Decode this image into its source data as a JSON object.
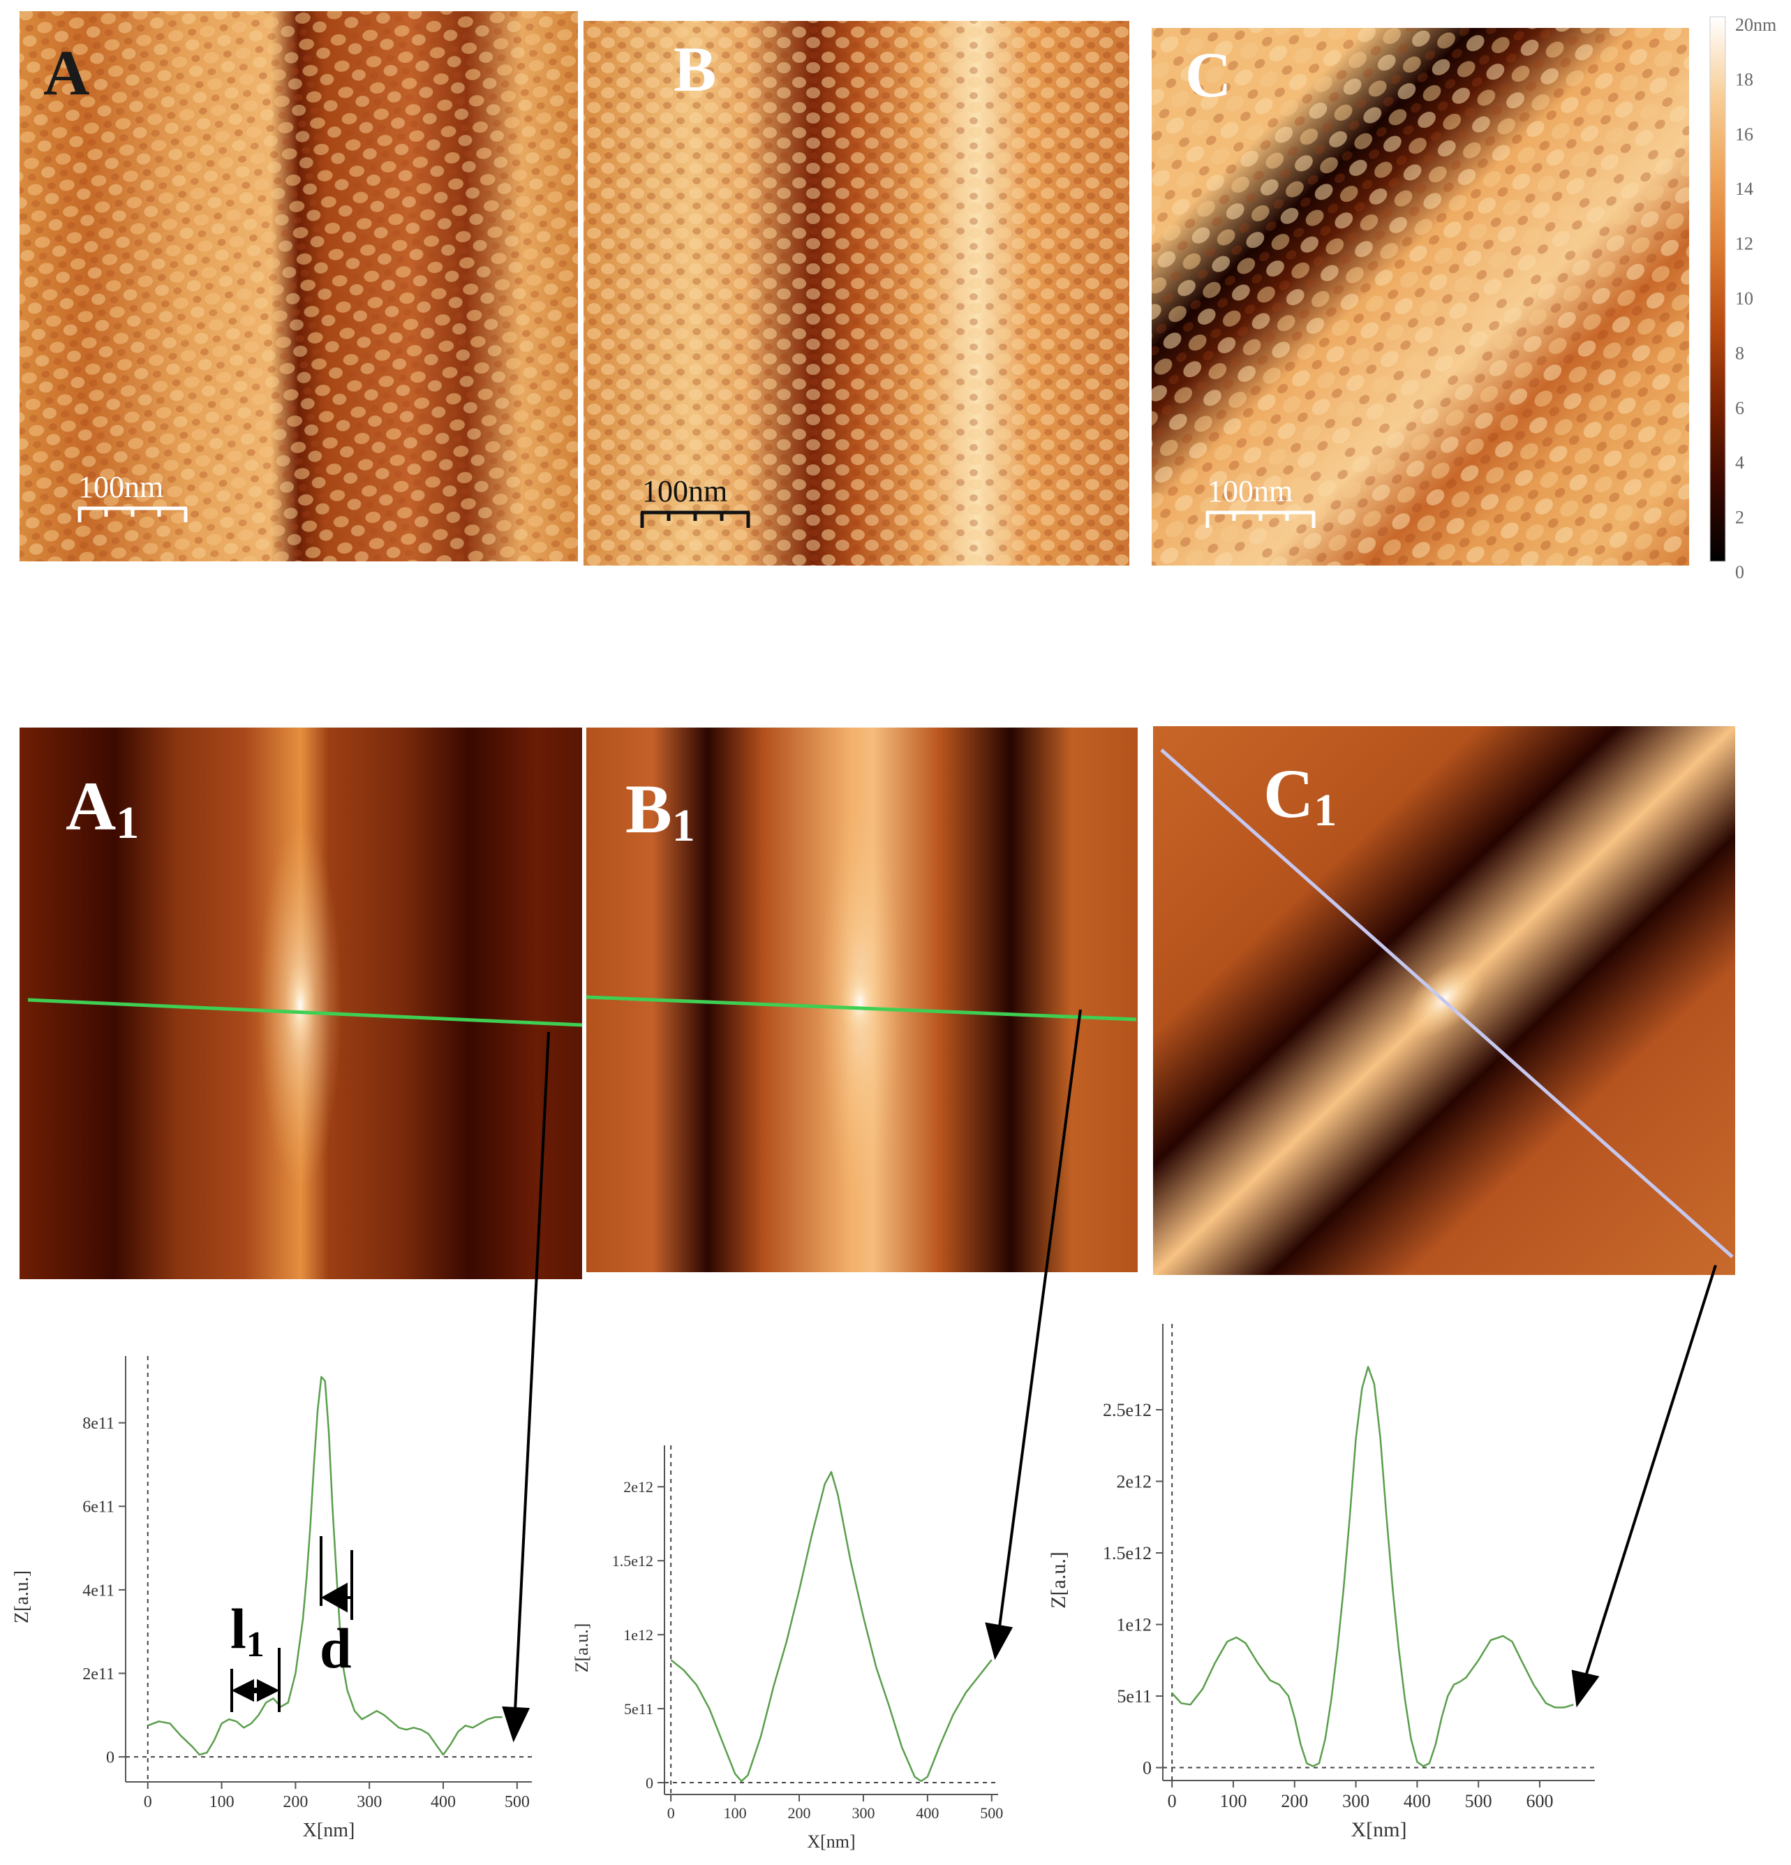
{
  "panels_top": [
    {
      "letter": "A",
      "scalebar": "100nm"
    },
    {
      "letter": "B",
      "scalebar": "100nm"
    },
    {
      "letter": "C",
      "scalebar": "100nm"
    }
  ],
  "colorbar": {
    "ticks": [
      "20nm",
      "18",
      "16",
      "14",
      "12",
      "10",
      "8",
      "6",
      "4",
      "2",
      "0"
    ],
    "colors": [
      "#000000",
      "#3a0800",
      "#7a2200",
      "#b84a10",
      "#dc7a30",
      "#eea55a",
      "#f8cf98",
      "#ffffff"
    ]
  },
  "panels_mid": [
    {
      "letter": "A",
      "subscript": "1"
    },
    {
      "letter": "B",
      "subscript": "1"
    },
    {
      "letter": "C",
      "subscript": "1"
    }
  ],
  "annotations": {
    "l1_letter": "l",
    "l1_sub": "1",
    "d": "d"
  },
  "chart_data": [
    {
      "type": "line",
      "panel": "A1 profile",
      "xlabel": "X[nm]",
      "ylabel": "Z[a.u.]",
      "xlim": [
        -30,
        520
      ],
      "ylim": [
        -60000000000.0,
        960000000000.0
      ],
      "xticks": [
        0,
        100,
        200,
        300,
        400,
        500
      ],
      "xtick_labels": [
        "0",
        "100",
        "200",
        "300",
        "400",
        "500"
      ],
      "yticks": [
        0,
        200000000000.0,
        400000000000.0,
        600000000000.0,
        800000000000.0
      ],
      "ytick_labels": [
        "0",
        "2e11",
        "4e11",
        "6e11",
        "8e11"
      ],
      "x": [
        0,
        15,
        30,
        45,
        60,
        70,
        80,
        90,
        100,
        110,
        120,
        130,
        140,
        150,
        160,
        170,
        180,
        190,
        200,
        210,
        215,
        220,
        225,
        230,
        235,
        240,
        245,
        250,
        255,
        260,
        265,
        270,
        280,
        290,
        300,
        310,
        320,
        330,
        340,
        350,
        360,
        370,
        380,
        390,
        400,
        410,
        420,
        430,
        440,
        450,
        460,
        470,
        480
      ],
      "y": [
        75000000000.0,
        85000000000.0,
        80000000000.0,
        50000000000.0,
        25000000000.0,
        5000000000.0,
        10000000000.0,
        40000000000.0,
        80000000000.0,
        90000000000.0,
        85000000000.0,
        70000000000.0,
        80000000000.0,
        100000000000.0,
        130000000000.0,
        140000000000.0,
        120000000000.0,
        130000000000.0,
        200000000000.0,
        330000000000.0,
        430000000000.0,
        550000000000.0,
        700000000000.0,
        830000000000.0,
        910000000000.0,
        900000000000.0,
        780000000000.0,
        600000000000.0,
        450000000000.0,
        310000000000.0,
        210000000000.0,
        160000000000.0,
        110000000000.0,
        90000000000.0,
        100000000000.0,
        110000000000.0,
        100000000000.0,
        85000000000.0,
        70000000000.0,
        65000000000.0,
        70000000000.0,
        65000000000.0,
        55000000000.0,
        30000000000.0,
        5000000000.0,
        30000000000.0,
        60000000000.0,
        75000000000.0,
        70000000000.0,
        80000000000.0,
        90000000000.0,
        95000000000.0,
        95000000000.0
      ],
      "line_color": "#5a9e4c"
    },
    {
      "type": "line",
      "panel": "B1 profile",
      "xlabel": "X[nm]",
      "ylabel": "Z[a.u.]",
      "xlim": [
        -10,
        510
      ],
      "ylim": [
        -80000000000.0,
        2280000000000.0
      ],
      "xticks": [
        0,
        100,
        200,
        300,
        400,
        500
      ],
      "xtick_labels": [
        "0",
        "100",
        "200",
        "300",
        "400",
        "500"
      ],
      "yticks": [
        0,
        500000000000.0,
        1000000000000.0,
        1500000000000.0,
        2000000000000.0
      ],
      "ytick_labels": [
        "0",
        "5e11",
        "1e12",
        "1.5e12",
        "2e12"
      ],
      "x": [
        0,
        20,
        40,
        60,
        80,
        100,
        110,
        120,
        140,
        160,
        180,
        200,
        220,
        240,
        250,
        260,
        280,
        300,
        320,
        340,
        360,
        380,
        390,
        400,
        420,
        440,
        460,
        480,
        500
      ],
      "y": [
        830000000000.0,
        760000000000.0,
        660000000000.0,
        500000000000.0,
        280000000000.0,
        60000000000.0,
        10000000000.0,
        50000000000.0,
        310000000000.0,
        650000000000.0,
        950000000000.0,
        1300000000000.0,
        1680000000000.0,
        2020000000000.0,
        2100000000000.0,
        1950000000000.0,
        1500000000000.0,
        1120000000000.0,
        780000000000.0,
        520000000000.0,
        240000000000.0,
        40000000000.0,
        10000000000.0,
        40000000000.0,
        260000000000.0,
        460000000000.0,
        610000000000.0,
        720000000000.0,
        830000000000.0
      ],
      "line_color": "#5a9e4c"
    },
    {
      "type": "line",
      "panel": "C1 profile",
      "xlabel": "X[nm]",
      "ylabel": "Z[a.u.]",
      "xlim": [
        -15,
        690
      ],
      "ylim": [
        -90000000000.0,
        3100000000000.0
      ],
      "xticks": [
        0,
        100,
        200,
        300,
        400,
        500,
        600
      ],
      "xtick_labels": [
        "0",
        "100",
        "200",
        "300",
        "400",
        "500",
        "600"
      ],
      "yticks": [
        0,
        500000000000.0,
        1000000000000.0,
        1500000000000.0,
        2000000000000.0,
        2500000000000.0
      ],
      "ytick_labels": [
        "0",
        "5e11",
        "1e12",
        "1.5e12",
        "2e12",
        "2.5e12"
      ],
      "x": [
        0,
        15,
        30,
        50,
        70,
        90,
        105,
        120,
        140,
        160,
        175,
        190,
        200,
        210,
        220,
        230,
        240,
        250,
        260,
        270,
        280,
        290,
        300,
        310,
        320,
        330,
        340,
        350,
        360,
        370,
        380,
        390,
        400,
        410,
        420,
        430,
        440,
        450,
        460,
        470,
        480,
        500,
        520,
        540,
        555,
        570,
        590,
        610,
        625,
        640,
        655
      ],
      "y": [
        520000000000.0,
        450000000000.0,
        440000000000.0,
        550000000000.0,
        730000000000.0,
        880000000000.0,
        910000000000.0,
        870000000000.0,
        730000000000.0,
        610000000000.0,
        580000000000.0,
        500000000000.0,
        350000000000.0,
        160000000000.0,
        30000000000.0,
        10000000000.0,
        30000000000.0,
        200000000000.0,
        480000000000.0,
        830000000000.0,
        1250000000000.0,
        1750000000000.0,
        2300000000000.0,
        2650000000000.0,
        2800000000000.0,
        2680000000000.0,
        2300000000000.0,
        1750000000000.0,
        1250000000000.0,
        830000000000.0,
        480000000000.0,
        200000000000.0,
        40000000000.0,
        10000000000.0,
        30000000000.0,
        160000000000.0,
        350000000000.0,
        500000000000.0,
        580000000000.0,
        600000000000.0,
        630000000000.0,
        750000000000.0,
        890000000000.0,
        920000000000.0,
        880000000000.0,
        750000000000.0,
        580000000000.0,
        450000000000.0,
        420000000000.0,
        420000000000.0,
        440000000000.0
      ],
      "line_color": "#5a9e4c"
    }
  ]
}
